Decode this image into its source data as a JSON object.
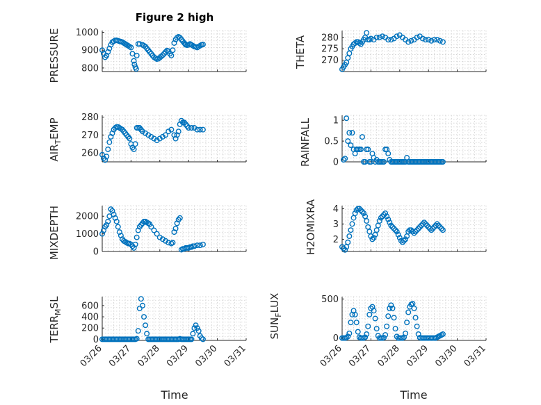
{
  "figure": {
    "title": "Figure 2 high",
    "xlabel": "Time",
    "x_tick_labels": [
      "03/26",
      "03/27",
      "03/28",
      "03/29",
      "03/30",
      "03/31"
    ],
    "marker_color": "#0072BD"
  },
  "chart_data": [
    {
      "type": "scatter",
      "panel": "PRESSURE",
      "ylabel": "PRESSURE",
      "ylim": [
        780,
        1010
      ],
      "yticks": [
        800,
        900,
        1000
      ],
      "xlim": [
        0,
        5
      ],
      "x": [
        0,
        0.05,
        0.1,
        0.15,
        0.2,
        0.25,
        0.3,
        0.35,
        0.4,
        0.45,
        0.5,
        0.55,
        0.6,
        0.65,
        0.7,
        0.75,
        0.8,
        0.85,
        0.9,
        0.95,
        1.0,
        1.05,
        1.1,
        1.12,
        1.15,
        1.18,
        1.2,
        1.25,
        1.3,
        1.4,
        1.45,
        1.5,
        1.55,
        1.6,
        1.65,
        1.7,
        1.75,
        1.8,
        1.85,
        1.9,
        1.95,
        2.0,
        2.05,
        2.1,
        2.15,
        2.2,
        2.25,
        2.3,
        2.35,
        2.4,
        2.45,
        2.5,
        2.55,
        2.6,
        2.65,
        2.7,
        2.75,
        2.8,
        2.85,
        2.88,
        2.9,
        2.95,
        3.0,
        3.05,
        3.1,
        3.15,
        3.2,
        3.25,
        3.3,
        3.35,
        3.4,
        3.45,
        3.5
      ],
      "y": [
        900,
        880,
        860,
        870,
        890,
        910,
        930,
        945,
        950,
        955,
        955,
        953,
        950,
        948,
        945,
        940,
        935,
        930,
        925,
        920,
        915,
        880,
        840,
        820,
        805,
        795,
        870,
        935,
        935,
        930,
        925,
        920,
        910,
        900,
        890,
        880,
        870,
        860,
        855,
        850,
        852,
        858,
        865,
        872,
        880,
        890,
        898,
        895,
        880,
        870,
        900,
        940,
        960,
        970,
        975,
        970,
        960,
        950,
        940,
        935,
        930,
        928,
        930,
        935,
        930,
        925,
        920,
        918,
        915,
        920,
        925,
        930,
        932
      ]
    },
    {
      "type": "scatter",
      "panel": "THETA",
      "ylabel": "THETA",
      "ylim": [
        265,
        283
      ],
      "yticks": [
        270,
        275,
        280
      ],
      "xlim": [
        0,
        5
      ],
      "x": [
        0,
        0.05,
        0.1,
        0.15,
        0.2,
        0.25,
        0.3,
        0.35,
        0.4,
        0.45,
        0.5,
        0.55,
        0.6,
        0.65,
        0.7,
        0.75,
        0.8,
        0.85,
        0.9,
        0.95,
        1.0,
        1.1,
        1.2,
        1.3,
        1.4,
        1.5,
        1.6,
        1.7,
        1.8,
        1.9,
        2.0,
        2.1,
        2.2,
        2.3,
        2.4,
        2.5,
        2.6,
        2.7,
        2.8,
        2.9,
        3.0,
        3.1,
        3.2,
        3.3,
        3.4,
        3.5
      ],
      "y": [
        266,
        267,
        268,
        269,
        271,
        273,
        275,
        276,
        277,
        277.5,
        278,
        278,
        277.5,
        277,
        278,
        279,
        280,
        282,
        279,
        279,
        279.5,
        279,
        280,
        280,
        280.5,
        280,
        279,
        279,
        279.5,
        280.5,
        281,
        280,
        279,
        278,
        278.5,
        279,
        280,
        280.5,
        279.5,
        279,
        279,
        278.5,
        279,
        279,
        278.5,
        278
      ]
    },
    {
      "type": "scatter",
      "panel": "AIR_TEMP",
      "ylabel": "AIR_TEMP",
      "ylim": [
        255,
        281
      ],
      "yticks": [
        260,
        270,
        280
      ],
      "xlim": [
        0,
        5
      ],
      "x": [
        0,
        0.05,
        0.1,
        0.15,
        0.2,
        0.25,
        0.3,
        0.35,
        0.4,
        0.45,
        0.5,
        0.55,
        0.6,
        0.65,
        0.7,
        0.75,
        0.8,
        0.85,
        0.9,
        0.95,
        1.0,
        1.05,
        1.1,
        1.15,
        1.2,
        1.25,
        1.3,
        1.35,
        1.4,
        1.5,
        1.6,
        1.7,
        1.8,
        1.9,
        2.0,
        2.1,
        2.2,
        2.3,
        2.4,
        2.5,
        2.55,
        2.6,
        2.65,
        2.7,
        2.75,
        2.8,
        2.85,
        2.9,
        2.95,
        3.0,
        3.1,
        3.2,
        3.3,
        3.4,
        3.5
      ],
      "y": [
        259,
        257,
        256,
        258,
        262,
        266,
        269,
        271,
        273,
        274,
        274.5,
        274.5,
        274,
        273.5,
        273,
        272,
        271,
        270,
        269,
        268,
        265,
        263,
        262,
        265,
        274,
        274,
        274,
        273,
        272,
        271,
        270,
        269,
        268,
        267,
        268,
        269,
        270,
        272,
        273,
        270,
        268,
        270,
        272,
        276,
        278,
        277,
        277,
        276,
        275,
        274,
        274,
        274,
        273,
        273,
        273
      ]
    },
    {
      "type": "scatter",
      "panel": "RAINFALL",
      "ylabel": "RAINFALL",
      "ylim": [
        0,
        1.12
      ],
      "yticks": [
        0,
        0.5,
        1
      ],
      "xlim": [
        0,
        5
      ],
      "x": [
        0.05,
        0.1,
        0.15,
        0.2,
        0.25,
        0.3,
        0.35,
        0.4,
        0.45,
        0.5,
        0.55,
        0.6,
        0.65,
        0.7,
        0.75,
        0.8,
        0.85,
        0.9,
        0.95,
        1.0,
        1.05,
        1.1,
        1.15,
        1.2,
        1.25,
        1.3,
        1.35,
        1.4,
        1.45,
        1.5,
        1.55,
        1.6,
        1.65,
        1.7,
        1.75,
        1.8,
        1.85,
        1.9,
        1.95,
        2.0,
        2.05,
        2.1,
        2.15,
        2.2,
        2.25,
        2.3,
        2.35,
        2.4,
        2.45,
        2.5,
        2.55,
        2.6,
        2.65,
        2.7,
        2.75,
        2.8,
        2.85,
        2.9,
        2.95,
        3.0,
        3.05,
        3.1,
        3.15,
        3.2,
        3.25,
        3.3,
        3.35,
        3.4,
        3.45,
        3.5
      ],
      "y": [
        0.05,
        0.08,
        1.05,
        0.5,
        0.7,
        0.4,
        0.7,
        0.3,
        0.2,
        0.3,
        0.3,
        0.3,
        0.3,
        0.6,
        0.0,
        0.0,
        0.3,
        0.3,
        0.0,
        0.0,
        0.2,
        0.1,
        0.0,
        0.05,
        0.0,
        0.0,
        0.0,
        0.0,
        0.0,
        0.3,
        0.3,
        0.2,
        0.05,
        0.0,
        0.0,
        0.0,
        0.0,
        0.0,
        0.0,
        0.0,
        0.0,
        0.0,
        0.0,
        0.0,
        0.1,
        0.0,
        0.0,
        0.0,
        0.0,
        0.0,
        0.0,
        0.0,
        0.0,
        0.0,
        0.0,
        0.0,
        0.0,
        0.0,
        0.0,
        0.0,
        0.0,
        0.0,
        0.0,
        0.0,
        0.0,
        0.0,
        0.0,
        0.0,
        0.0,
        0.0
      ]
    },
    {
      "type": "scatter",
      "panel": "MIXDEPTH",
      "ylabel": "MIXDEPTH",
      "ylim": [
        0,
        2600
      ],
      "yticks": [
        0,
        1000,
        2000
      ],
      "xlim": [
        0,
        5
      ],
      "x": [
        0,
        0.05,
        0.1,
        0.15,
        0.2,
        0.25,
        0.3,
        0.35,
        0.4,
        0.45,
        0.5,
        0.55,
        0.6,
        0.65,
        0.7,
        0.75,
        0.8,
        0.85,
        0.9,
        0.95,
        1.0,
        1.05,
        1.1,
        1.15,
        1.2,
        1.25,
        1.3,
        1.35,
        1.4,
        1.45,
        1.5,
        1.55,
        1.6,
        1.65,
        1.7,
        1.8,
        1.9,
        2.0,
        2.1,
        2.2,
        2.3,
        2.4,
        2.45,
        2.5,
        2.55,
        2.6,
        2.65,
        2.7,
        2.75,
        2.8,
        2.85,
        2.9,
        2.95,
        3.0,
        3.05,
        3.1,
        3.15,
        3.2,
        3.3,
        3.4,
        3.5
      ],
      "y": [
        1000,
        1200,
        1400,
        1500,
        1700,
        2000,
        2400,
        2300,
        2100,
        1900,
        1700,
        1400,
        1100,
        900,
        700,
        600,
        550,
        500,
        450,
        450,
        400,
        300,
        200,
        400,
        800,
        1200,
        1400,
        1500,
        1600,
        1700,
        1700,
        1650,
        1600,
        1550,
        1400,
        1200,
        1000,
        800,
        700,
        600,
        500,
        450,
        500,
        1100,
        1300,
        1600,
        1800,
        1900,
        100,
        150,
        150,
        200,
        200,
        200,
        250,
        250,
        300,
        300,
        350,
        350,
        400
      ]
    },
    {
      "type": "scatter",
      "panel": "H2OMIXRA",
      "ylabel": "H2OMIXRA",
      "ylim": [
        1.2,
        4.2
      ],
      "yticks": [
        2,
        3,
        4
      ],
      "xlim": [
        0,
        5
      ],
      "x": [
        0,
        0.05,
        0.1,
        0.15,
        0.2,
        0.25,
        0.3,
        0.35,
        0.4,
        0.45,
        0.5,
        0.55,
        0.6,
        0.65,
        0.7,
        0.75,
        0.8,
        0.85,
        0.9,
        0.95,
        1.0,
        1.05,
        1.1,
        1.15,
        1.2,
        1.25,
        1.3,
        1.35,
        1.4,
        1.45,
        1.5,
        1.55,
        1.6,
        1.65,
        1.7,
        1.75,
        1.8,
        1.85,
        1.9,
        1.95,
        2.0,
        2.05,
        2.1,
        2.15,
        2.2,
        2.25,
        2.3,
        2.35,
        2.4,
        2.45,
        2.5,
        2.55,
        2.6,
        2.65,
        2.7,
        2.75,
        2.8,
        2.85,
        2.9,
        2.95,
        3.0,
        3.05,
        3.1,
        3.15,
        3.2,
        3.25,
        3.3,
        3.35,
        3.4,
        3.45,
        3.5
      ],
      "y": [
        1.5,
        1.4,
        1.3,
        1.5,
        1.8,
        2.2,
        2.6,
        3.0,
        3.4,
        3.7,
        3.9,
        4.0,
        4.0,
        3.9,
        3.8,
        3.7,
        3.5,
        3.2,
        2.8,
        2.5,
        2.2,
        2.0,
        2.1,
        2.3,
        2.6,
        2.9,
        3.2,
        3.4,
        3.5,
        3.6,
        3.7,
        3.5,
        3.3,
        3.1,
        2.9,
        2.8,
        2.7,
        2.6,
        2.5,
        2.3,
        2.1,
        1.9,
        1.8,
        1.9,
        2.0,
        2.2,
        2.5,
        2.6,
        2.6,
        2.5,
        2.4,
        2.5,
        2.6,
        2.7,
        2.8,
        2.9,
        3.0,
        3.1,
        3.0,
        2.9,
        2.8,
        2.7,
        2.6,
        2.7,
        2.8,
        2.9,
        3.0,
        2.9,
        2.8,
        2.7,
        2.6
      ]
    },
    {
      "type": "scatter",
      "panel": "TERR_MSL",
      "ylabel": "TERR_MSL",
      "ylim": [
        -20,
        760
      ],
      "yticks": [
        0,
        200,
        400,
        600
      ],
      "xlim": [
        0,
        5
      ],
      "x": [
        0,
        0.05,
        0.1,
        0.15,
        0.2,
        0.25,
        0.3,
        0.35,
        0.4,
        0.45,
        0.5,
        0.55,
        0.6,
        0.65,
        0.7,
        0.75,
        0.8,
        0.85,
        0.9,
        0.95,
        1.0,
        1.05,
        1.1,
        1.15,
        1.2,
        1.25,
        1.3,
        1.35,
        1.4,
        1.45,
        1.5,
        1.55,
        1.6,
        1.65,
        1.7,
        1.75,
        1.8,
        1.85,
        1.9,
        1.95,
        2.0,
        2.05,
        2.1,
        2.15,
        2.2,
        2.25,
        2.3,
        2.35,
        2.4,
        2.45,
        2.5,
        2.55,
        2.6,
        2.65,
        2.7,
        2.75,
        2.8,
        2.85,
        2.9,
        2.95,
        3.0,
        3.05,
        3.1,
        3.15,
        3.2,
        3.25,
        3.3,
        3.35,
        3.4,
        3.45,
        3.5
      ],
      "y": [
        0,
        0,
        0,
        0,
        0,
        0,
        0,
        0,
        0,
        0,
        0,
        0,
        0,
        0,
        0,
        0,
        0,
        0,
        0,
        0,
        0,
        0,
        0,
        0,
        10,
        150,
        550,
        720,
        600,
        400,
        250,
        100,
        0,
        0,
        0,
        0,
        0,
        0,
        0,
        0,
        0,
        0,
        0,
        0,
        0,
        0,
        0,
        0,
        0,
        0,
        0,
        0,
        0,
        0,
        10,
        0,
        0,
        0,
        0,
        0,
        0,
        0,
        0,
        100,
        200,
        250,
        200,
        150,
        60,
        20,
        0
      ]
    },
    {
      "type": "scatter",
      "panel": "SUN_FLUX",
      "ylabel": "SUN_FLUX",
      "ylim": [
        -30,
        530
      ],
      "yticks": [
        0,
        500
      ],
      "xlim": [
        0,
        5
      ],
      "x": [
        0,
        0.05,
        0.1,
        0.15,
        0.2,
        0.25,
        0.3,
        0.35,
        0.4,
        0.45,
        0.5,
        0.55,
        0.6,
        0.65,
        0.7,
        0.75,
        0.8,
        0.85,
        0.9,
        0.95,
        1.0,
        1.05,
        1.1,
        1.15,
        1.2,
        1.25,
        1.3,
        1.35,
        1.4,
        1.45,
        1.5,
        1.55,
        1.6,
        1.65,
        1.7,
        1.75,
        1.8,
        1.85,
        1.9,
        1.95,
        2.0,
        2.05,
        2.1,
        2.15,
        2.2,
        2.25,
        2.3,
        2.35,
        2.4,
        2.45,
        2.5,
        2.55,
        2.6,
        2.65,
        2.7,
        2.75,
        2.8,
        2.85,
        2.9,
        2.95,
        3.0,
        3.05,
        3.1,
        3.15,
        3.2,
        3.25,
        3.3,
        3.35,
        3.4,
        3.45,
        3.5
      ],
      "y": [
        0,
        0,
        0,
        5,
        20,
        60,
        200,
        300,
        350,
        300,
        200,
        80,
        10,
        0,
        0,
        0,
        10,
        50,
        150,
        300,
        380,
        400,
        350,
        250,
        120,
        30,
        0,
        0,
        0,
        5,
        40,
        150,
        280,
        380,
        420,
        380,
        260,
        120,
        20,
        0,
        0,
        0,
        0,
        10,
        60,
        200,
        330,
        400,
        430,
        440,
        380,
        260,
        150,
        50,
        5,
        0,
        0,
        0,
        0,
        0,
        0,
        0,
        0,
        0,
        0,
        0,
        10,
        20,
        30,
        40,
        50
      ]
    }
  ]
}
